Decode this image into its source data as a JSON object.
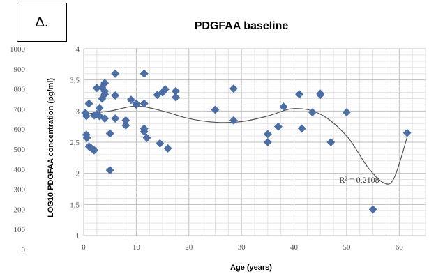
{
  "panel_label": "Δ.",
  "colors": {
    "marker": "#4a6fa8",
    "trendline": "#555555",
    "grid_major": "#bfbfbf",
    "grid_minor": "#e2e2e2"
  },
  "chart_data": {
    "type": "scatter",
    "title": "PDGFAA baseline",
    "xlabel": "Age (years)",
    "ylabel": "LOG10 PDGFAA concentration  (pg/ml)",
    "xlim": [
      0,
      65
    ],
    "ylim": [
      1,
      4
    ],
    "x_ticks": [
      "0",
      "10",
      "20",
      "30",
      "40",
      "50",
      "60"
    ],
    "y_ticks": [
      "1",
      "1,5",
      "2",
      "2,5",
      "3",
      "3,5",
      "4"
    ],
    "secondary_y_ticks": [
      "0",
      "100",
      "200",
      "300",
      "400",
      "500",
      "600",
      "700",
      "800",
      "900",
      "1000"
    ],
    "grid": true,
    "points": [
      [
        0.3,
        2.97
      ],
      [
        0.5,
        2.92
      ],
      [
        0.5,
        2.62
      ],
      [
        0.6,
        2.57
      ],
      [
        1,
        3.12
      ],
      [
        1,
        2.43
      ],
      [
        1.5,
        2.4
      ],
      [
        2,
        2.37
      ],
      [
        2,
        2.93
      ],
      [
        2.5,
        3.37
      ],
      [
        2.5,
        2.95
      ],
      [
        3,
        3.05
      ],
      [
        3,
        2.92
      ],
      [
        3.5,
        3.38
      ],
      [
        3.5,
        3.2
      ],
      [
        4,
        3.45
      ],
      [
        4,
        3.32
      ],
      [
        4,
        3.27
      ],
      [
        4,
        2.88
      ],
      [
        5,
        2.05
      ],
      [
        5,
        2.64
      ],
      [
        6,
        3.25
      ],
      [
        6,
        3.6
      ],
      [
        6,
        2.88
      ],
      [
        8,
        2.85
      ],
      [
        8,
        2.77
      ],
      [
        9,
        3.18
      ],
      [
        10,
        3.12
      ],
      [
        10,
        3.1
      ],
      [
        11.5,
        3.6
      ],
      [
        11.5,
        3.12
      ],
      [
        11.5,
        2.72
      ],
      [
        11.5,
        2.67
      ],
      [
        12,
        2.57
      ],
      [
        14,
        3.26
      ],
      [
        14.5,
        2.48
      ],
      [
        15,
        3.3
      ],
      [
        15.5,
        3.35
      ],
      [
        16,
        2.4
      ],
      [
        17.5,
        3.32
      ],
      [
        17.5,
        3.22
      ],
      [
        25,
        3.02
      ],
      [
        28.5,
        3.36
      ],
      [
        28.5,
        2.85
      ],
      [
        35,
        2.5
      ],
      [
        35,
        2.63
      ],
      [
        37,
        2.75
      ],
      [
        38,
        3.07
      ],
      [
        41,
        3.27
      ],
      [
        41.5,
        2.72
      ],
      [
        43.5,
        2.98
      ],
      [
        45,
        3.28
      ],
      [
        45,
        3.26
      ],
      [
        47,
        2.5
      ],
      [
        50,
        2.98
      ],
      [
        55,
        1.42
      ],
      [
        61.5,
        2.65
      ]
    ],
    "trendline": {
      "type": "polynomial",
      "r_squared_label": "R² = 0,2108",
      "curve": [
        [
          0,
          2.95
        ],
        [
          5,
          3.0
        ],
        [
          10,
          3.08
        ],
        [
          15,
          3.0
        ],
        [
          20,
          2.88
        ],
        [
          25,
          2.82
        ],
        [
          30,
          2.83
        ],
        [
          35,
          2.92
        ],
        [
          40,
          3.04
        ],
        [
          45,
          2.95
        ],
        [
          50,
          2.6
        ],
        [
          54,
          2.1
        ],
        [
          57,
          1.85
        ],
        [
          59,
          1.92
        ],
        [
          61.5,
          2.58
        ]
      ]
    }
  }
}
